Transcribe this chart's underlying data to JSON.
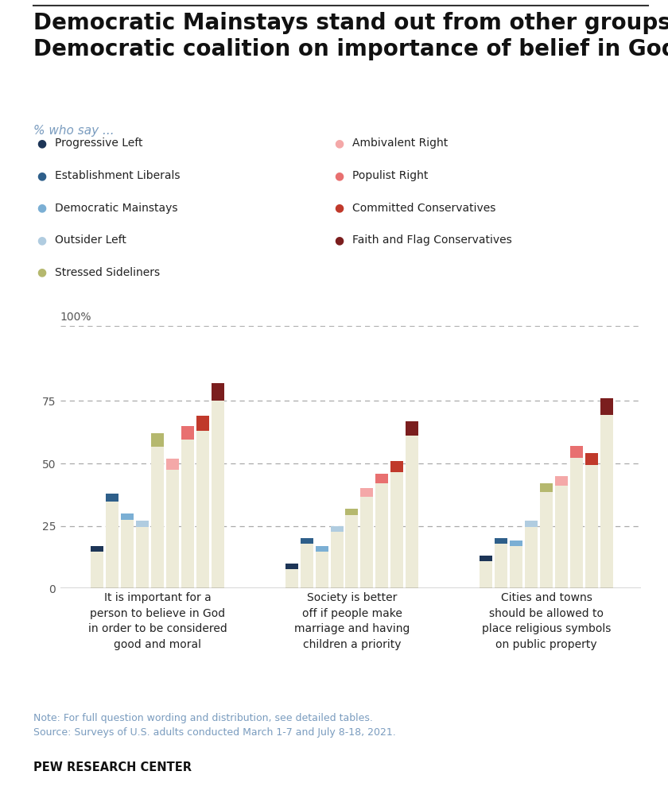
{
  "title": "Democratic Mainstays stand out from other groups in\nDemocratic coalition on importance of belief in God",
  "subtitle": "% who say ...",
  "groups": [
    "Progressive Left",
    "Establishment Liberals",
    "Democratic Mainstays",
    "Outsider Left",
    "Stressed Sideliners",
    "Ambivalent Right",
    "Populist Right",
    "Committed Conservatives",
    "Faith and Flag Conservatives"
  ],
  "group_colors": [
    "#1d3557",
    "#2e5f8a",
    "#7bafd4",
    "#b0cce0",
    "#b5b86e",
    "#f4a8a8",
    "#e87070",
    "#c0392b",
    "#7b1e1e"
  ],
  "questions": [
    "It is important for a\nperson to believe in God\nin order to be considered\ngood and moral",
    "Society is better\noff if people make\nmarriage and having\nchildren a priority",
    "Cities and towns\nshould be allowed to\nplace religious symbols\non public property"
  ],
  "values": [
    [
      17,
      38,
      30,
      27,
      62,
      52,
      65,
      69,
      82
    ],
    [
      10,
      20,
      17,
      25,
      32,
      40,
      46,
      51,
      67
    ],
    [
      13,
      20,
      19,
      27,
      42,
      45,
      57,
      54,
      76
    ]
  ],
  "bar_body_color": "#edebd8",
  "ylim": [
    0,
    100
  ],
  "yticks": [
    0,
    25,
    50,
    75
  ],
  "note_line1": "Note: For full question wording and distribution, see detailed tables.",
  "note_line2": "Source: Surveys of U.S. adults conducted March 1-7 and July 8-18, 2021.",
  "footer": "PEW RESEARCH CENTER",
  "background_color": "#ffffff",
  "title_fontsize": 20,
  "subtitle_color": "#7a9cbf",
  "note_color": "#7a9cbf",
  "text_color": "#222222",
  "axis_color": "#555555"
}
